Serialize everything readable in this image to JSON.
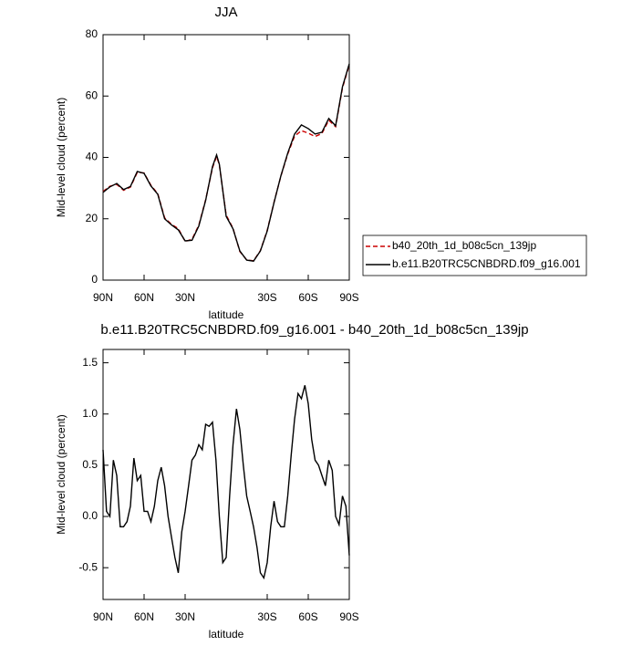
{
  "chart_data": [
    {
      "type": "line",
      "title": "JJA",
      "xlabel": "latitude",
      "ylabel": "Mid-level cloud (percent)",
      "x": [
        90,
        85,
        80,
        75,
        70,
        65,
        60,
        55,
        50,
        45,
        40,
        35,
        30,
        25,
        20,
        15,
        10,
        7,
        5,
        0,
        -5,
        -10,
        -15,
        -20,
        -25,
        -30,
        -35,
        -40,
        -45,
        -50,
        -55,
        -60,
        -65,
        -70,
        -75,
        -80,
        -85,
        -90
      ],
      "series": [
        {
          "name": "b40_20th_1d_b08c5cn_139jp",
          "color": "#cc0000",
          "dash": true,
          "values": [
            28.9,
            30.6,
            31.2,
            29.3,
            30.3,
            35.1,
            34.9,
            30.9,
            28.2,
            20.3,
            18.2,
            16.8,
            12.6,
            13.3,
            17.9,
            26.2,
            36.6,
            40.3,
            37.6,
            21.2,
            16.9,
            9.3,
            6.6,
            6.3,
            9.6,
            16.2,
            25.4,
            33.9,
            41.1,
            46.9,
            48.7,
            47.9,
            46.8,
            47.8,
            52.1,
            50.0,
            62.6,
            70.2
          ]
        },
        {
          "name": "b.e11.B20TRC5CNBDRD.f09_g16.001",
          "color": "#000000",
          "dash": false,
          "values": [
            28.6,
            30.4,
            31.5,
            29.5,
            30.5,
            35.4,
            34.8,
            30.7,
            28.0,
            20.0,
            18.0,
            16.4,
            12.8,
            13.0,
            17.6,
            26.0,
            37.0,
            40.8,
            37.8,
            20.8,
            16.7,
            9.5,
            6.5,
            6.2,
            9.5,
            16.0,
            25.3,
            34.0,
            41.4,
            47.6,
            50.6,
            49.4,
            47.6,
            48.2,
            52.7,
            50.3,
            63.0,
            70.5
          ]
        }
      ],
      "xlim": [
        90,
        -90
      ],
      "ylim": [
        0,
        80
      ],
      "xticks": [
        {
          "value": 90,
          "label": "90N"
        },
        {
          "value": 60,
          "label": "60N"
        },
        {
          "value": 30,
          "label": "30N"
        },
        {
          "value": -30,
          "label": "30S"
        },
        {
          "value": -60,
          "label": "60S"
        },
        {
          "value": -90,
          "label": "90S"
        }
      ],
      "yticks": [
        0,
        20,
        40,
        60,
        80
      ],
      "legend": "right"
    },
    {
      "type": "line",
      "title": "b.e11.B20TRC5CNBDRD.f09_g16.001 - b40_20th_1d_b08c5cn_139jp",
      "xlabel": "latitude",
      "ylabel": "Mid-level cloud (percent)",
      "x": [
        90,
        87.5,
        85,
        82.5,
        80,
        77.5,
        75,
        72.5,
        70,
        67.5,
        65,
        62.5,
        60,
        57.5,
        55,
        52.5,
        50,
        47.5,
        45,
        42.5,
        40,
        37.5,
        35,
        32.5,
        30,
        27.5,
        25,
        22.5,
        20,
        17.5,
        15,
        12.5,
        10,
        7.5,
        5,
        2.5,
        0,
        -2.5,
        -5,
        -7.5,
        -10,
        -12.5,
        -15,
        -17.5,
        -20,
        -22.5,
        -25,
        -27.5,
        -30,
        -32.5,
        -35,
        -37.5,
        -40,
        -42.5,
        -45,
        -47.5,
        -50,
        -52.5,
        -55,
        -57.5,
        -60,
        -62.5,
        -65,
        -67.5,
        -70,
        -72.5,
        -75,
        -77.5,
        -80,
        -82.5,
        -85,
        -87.5,
        -90
      ],
      "values": [
        0.65,
        0.05,
        0.0,
        0.55,
        0.4,
        -0.1,
        -0.1,
        -0.05,
        0.1,
        0.57,
        0.35,
        0.4,
        0.05,
        0.05,
        -0.05,
        0.1,
        0.35,
        0.48,
        0.3,
        0.0,
        -0.2,
        -0.4,
        -0.55,
        -0.15,
        0.05,
        0.3,
        0.55,
        0.6,
        0.7,
        0.65,
        0.9,
        0.88,
        0.92,
        0.55,
        0.0,
        -0.45,
        -0.4,
        0.2,
        0.7,
        1.05,
        0.85,
        0.5,
        0.2,
        0.05,
        -0.1,
        -0.3,
        -0.55,
        -0.6,
        -0.45,
        -0.1,
        0.15,
        -0.05,
        -0.1,
        -0.1,
        0.2,
        0.6,
        0.95,
        1.2,
        1.15,
        1.28,
        1.1,
        0.75,
        0.55,
        0.5,
        0.4,
        0.3,
        0.55,
        0.45,
        0.0,
        -0.08,
        0.2,
        0.1,
        -0.38
      ],
      "color": "#000000",
      "xlim": [
        90,
        -90
      ],
      "ylim": [
        -0.81,
        1.63
      ],
      "xticks": [
        {
          "value": 90,
          "label": "90N"
        },
        {
          "value": 60,
          "label": "60N"
        },
        {
          "value": 30,
          "label": "30N"
        },
        {
          "value": -30,
          "label": "30S"
        },
        {
          "value": -60,
          "label": "60S"
        },
        {
          "value": -90,
          "label": "90S"
        }
      ],
      "yticks": [
        -0.5,
        {
          "value": 0,
          "label": "0.0"
        },
        0.5,
        {
          "value": 1,
          "label": "1.0"
        },
        1.5
      ]
    }
  ]
}
